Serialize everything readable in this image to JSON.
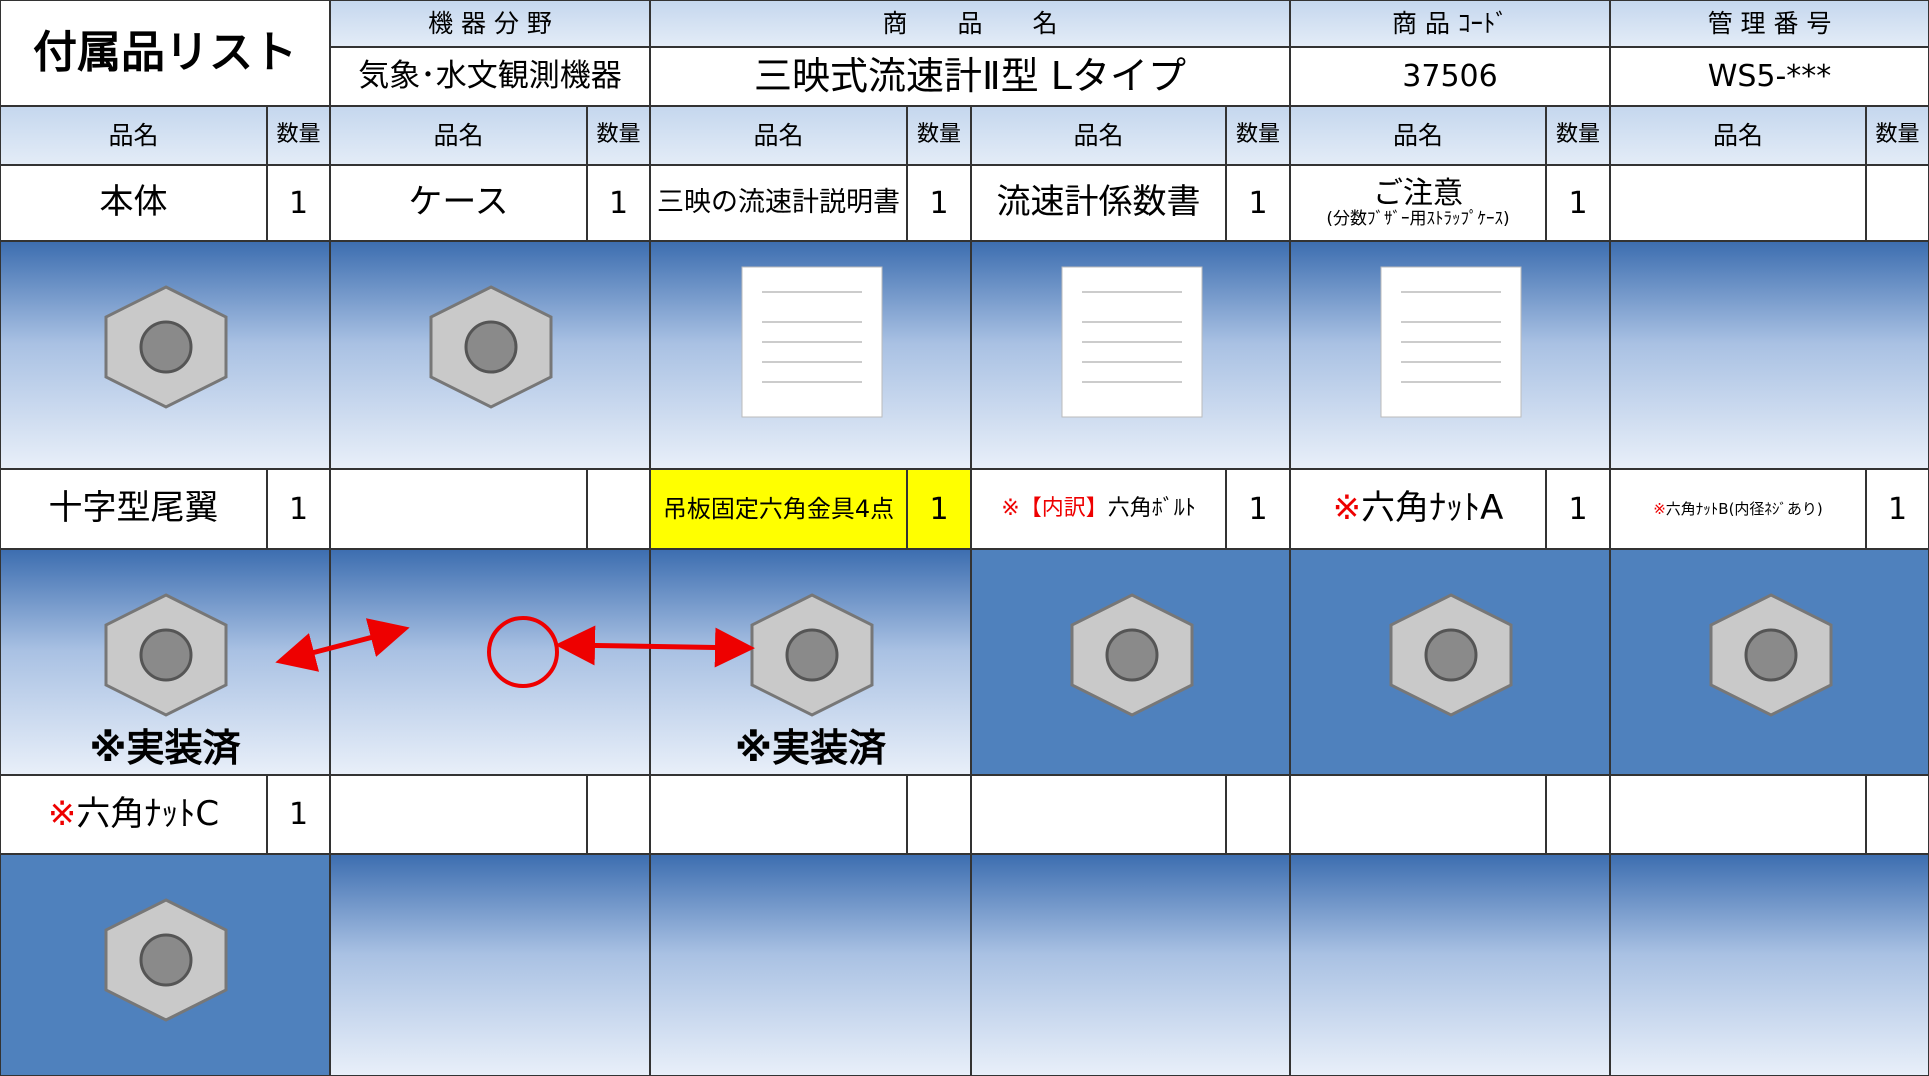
{
  "header": {
    "title": "付属品リスト",
    "fields": [
      {
        "label": "機 器 分 野",
        "value": "気象･水文観測機器"
      },
      {
        "label": "商　　品　　名",
        "value": "三映式流速計Ⅱ型 Lタイプ"
      },
      {
        "label": "商 品 ｺｰﾄﾞ",
        "value": "37506"
      },
      {
        "label": "管 理 番 号",
        "value": "WS5-***"
      }
    ]
  },
  "columns": {
    "name": "品名",
    "qty": "数量"
  },
  "rows": [
    [
      {
        "name": "本体",
        "qty": 1
      },
      {
        "name": "ケース",
        "qty": 1
      },
      {
        "name": "三映の流速計説明書",
        "qty": 1
      },
      {
        "name": "流速計係数書",
        "qty": 1
      },
      {
        "name": "ご注意",
        "sub": "(分数ﾌﾞｻﾞｰ用ｽﾄﾗｯﾌﾟｹｰｽ)",
        "qty": 1
      },
      null
    ],
    [
      {
        "name": "十字型尾翼",
        "qty": 1,
        "image_note": "※実装済"
      },
      null,
      {
        "name": "吊板固定六角金具4点",
        "qty": 1,
        "highlight": true,
        "image_note": "※実装済"
      },
      {
        "note": "※【内訳】",
        "name": "六角ﾎﾞﾙﾄ",
        "qty": 1
      },
      {
        "note": "※",
        "name": "六角ﾅｯﾄA",
        "qty": 1
      },
      {
        "note": "※",
        "name": "六角ﾅｯﾄB(内径ﾈｼﾞあり)",
        "qty": 1
      }
    ],
    [
      {
        "note": "※",
        "name": "六角ﾅｯﾄC",
        "qty": 1
      },
      null,
      null,
      null,
      null,
      null
    ]
  ]
}
